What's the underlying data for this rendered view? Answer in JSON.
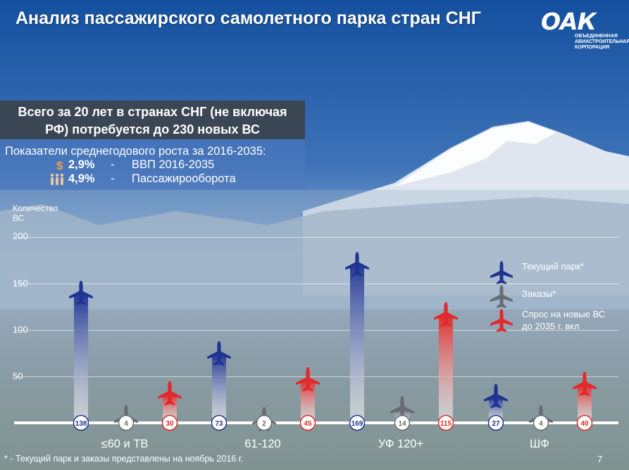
{
  "header": {
    "title": "Анализ пассажирского самолетного парка стран СНГ",
    "logo_mark": "ОАК",
    "logo_sub": [
      "ОБЪЕДИНЕННАЯ",
      "АВИАСТРОИТЕЛЬНАЯ",
      "КОРПОРАЦИЯ"
    ]
  },
  "callout": {
    "line1": "Всего за 20 лет в странах СНГ (не включая",
    "line2": "РФ) потребуется до 230 новых ВС"
  },
  "growth": {
    "heading": "Показатели среднегодового роста за 2016-2035:",
    "rows": [
      {
        "icon": "dollar-icon",
        "value": "2,9%",
        "dash": "-",
        "label": "ВВП 2016-2035"
      },
      {
        "icon": "passengers-icon",
        "value": "4,9%",
        "dash": "-",
        "label": "Пассажирооборота"
      }
    ]
  },
  "footer": {
    "note": "* - Текущий парк и заказы представлены на ноябрь 2016 г.",
    "page": "7"
  },
  "colors": {
    "current": "#1f3391",
    "orders": "#666c72",
    "demand": "#e12a2a"
  },
  "chart_data": {
    "type": "bar",
    "ylabel": "Количество ВС",
    "ylabel_lines": [
      "Количество",
      "ВС"
    ],
    "yticks": [
      "200",
      "150",
      "100",
      "50"
    ],
    "ylim": [
      0,
      200
    ],
    "grid": true,
    "legend_position": "right",
    "categories": [
      "≤60 и ТВ",
      "61-120",
      "УФ 120+",
      "ШФ"
    ],
    "series": [
      {
        "name": "Текущий парк*",
        "color": "#1f3391",
        "values": [
          138,
          73,
          169,
          27
        ]
      },
      {
        "name": "Заказы*",
        "color": "#666c72",
        "values": [
          4,
          2,
          14,
          4
        ]
      },
      {
        "name": "Спрос на новые ВС до 2035 г. вкл",
        "color": "#e12a2a",
        "values": [
          30,
          45,
          115,
          40
        ]
      }
    ],
    "legend": [
      {
        "key": "current",
        "lines": [
          "Текущий парк*"
        ]
      },
      {
        "key": "orders",
        "lines": [
          "Заказы*"
        ]
      },
      {
        "key": "demand",
        "lines": [
          "Спрос на новые ВС",
          "до 2035 г. вкл"
        ]
      }
    ]
  }
}
